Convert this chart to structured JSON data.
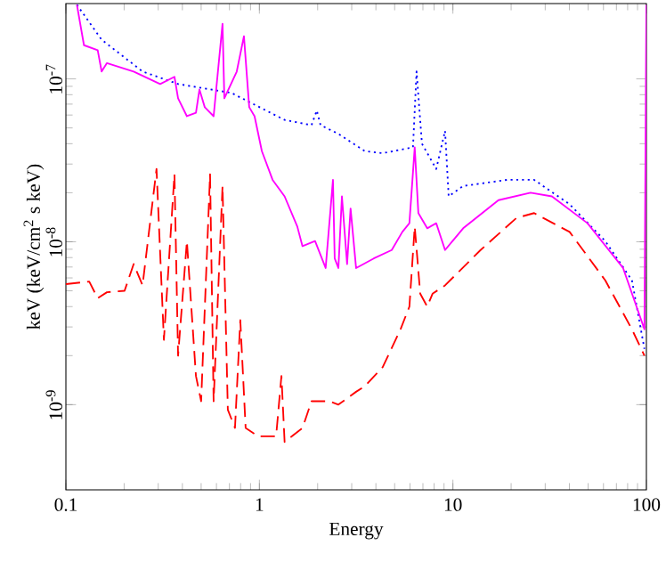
{
  "chart_data": {
    "type": "line",
    "xlabel": "Energy",
    "ylabel": "keV (keV/cm$^{2}$ s keV)",
    "log": "xy",
    "grid": false,
    "marker": "none",
    "xlim": [
      0.1,
      100
    ],
    "ylim": [
      3e-10,
      2.9e-07
    ],
    "xticks": [
      {
        "value": 0.1,
        "label": "0.1"
      },
      {
        "value": 1,
        "label": "1"
      },
      {
        "value": 10,
        "label": "10"
      },
      {
        "value": 100,
        "label": "100"
      }
    ],
    "yticks": [
      {
        "value": 1e-09,
        "label": "10$^{-9}$"
      },
      {
        "value": 1e-08,
        "label": "10$^{-8}$"
      },
      {
        "value": 1e-07,
        "label": "10$^{-7}$"
      }
    ],
    "series": [
      {
        "color": "#0000ff",
        "line_style": "dotted",
        "x": [
          0.114,
          0.153,
          0.249,
          0.38,
          0.717,
          1.35,
          1.86,
          1.98,
          2.07,
          2.56,
          3.51,
          4.34,
          6.22,
          6.49,
          6.92,
          8.2,
          9.11,
          9.51,
          11.3,
          19.1,
          26.3,
          40.1,
          61.3,
          84.2,
          97.7
        ],
        "values": [
          2.85e-07,
          1.74e-07,
          1.11e-07,
          9.3e-08,
          8.2e-08,
          5.6e-08,
          5.2e-08,
          6.4e-08,
          5.2e-08,
          4.6e-08,
          3.6e-08,
          3.5e-08,
          3.8e-08,
          1.11e-07,
          4e-08,
          2.8e-08,
          4.8e-08,
          1.9e-08,
          2.2e-08,
          2.4e-08,
          2.4e-08,
          1.7e-08,
          1.01e-08,
          5.8e-09,
          2.2e-09
        ]
      },
      {
        "color": "#ff00ff",
        "line_style": "solid",
        "x": [
          0.114,
          0.124,
          0.146,
          0.153,
          0.163,
          0.224,
          0.307,
          0.364,
          0.38,
          0.422,
          0.47,
          0.49,
          0.522,
          0.58,
          0.645,
          0.659,
          0.764,
          0.832,
          0.886,
          0.944,
          1.03,
          1.17,
          1.35,
          1.57,
          1.67,
          1.94,
          2.2,
          2.4,
          2.45,
          2.56,
          2.67,
          2.84,
          2.96,
          3.16,
          3.9,
          4.83,
          5.48,
          5.96,
          6.35,
          6.63,
          7.37,
          8.2,
          9.11,
          11.3,
          17.2,
          25.2,
          32.5,
          49.6,
          75.8,
          97.7,
          100
        ],
        "values": [
          2.85e-07,
          1.61e-07,
          1.5e-07,
          1.11e-07,
          1.25e-07,
          1.11e-07,
          9.3e-08,
          1.03e-07,
          7.6e-08,
          5.9e-08,
          6.2e-08,
          8.6e-08,
          6.7e-08,
          5.9e-08,
          2.18e-07,
          7.6e-08,
          1.11e-07,
          1.83e-07,
          6.7e-08,
          5.9e-08,
          3.6e-08,
          2.4e-08,
          1.9e-08,
          1.24e-08,
          9.4e-09,
          1.01e-08,
          6.9e-09,
          2.4e-08,
          7.9e-09,
          6.9e-09,
          1.9e-08,
          7.3e-09,
          1.6e-08,
          6.9e-09,
          7.9e-09,
          8.9e-09,
          1.15e-08,
          1.3e-08,
          3.8e-08,
          1.5e-08,
          1.21e-08,
          1.3e-08,
          8.9e-09,
          1.21e-08,
          1.8e-08,
          2e-08,
          1.9e-08,
          1.3e-08,
          6.9e-09,
          2.9e-09,
          2.85e-07
        ]
      },
      {
        "color": "#ff0000",
        "line_style": "dashed",
        "x": [
          0.1,
          0.132,
          0.146,
          0.163,
          0.201,
          0.224,
          0.249,
          0.294,
          0.321,
          0.364,
          0.38,
          0.422,
          0.47,
          0.5,
          0.556,
          0.58,
          0.645,
          0.687,
          0.748,
          0.797,
          0.849,
          0.985,
          1.22,
          1.3,
          1.35,
          1.67,
          1.86,
          2.3,
          2.56,
          3.16,
          3.51,
          4.34,
          5.36,
          5.96,
          6.35,
          6.78,
          7.37,
          7.85,
          9.11,
          13.9,
          21.3,
          26.3,
          40.1,
          61.3,
          84.2,
          97.7
        ],
        "values": [
          5.5e-09,
          5.7e-09,
          4.5e-09,
          4.9e-09,
          5e-09,
          7.3e-09,
          5.4e-09,
          2.8e-08,
          2.5e-09,
          2.6e-08,
          2e-09,
          1.01e-08,
          1.5e-09,
          1.05e-09,
          2.6e-08,
          1.05e-09,
          2.2e-08,
          9.3e-10,
          7.2e-10,
          3.3e-09,
          7.2e-10,
          6.4e-10,
          6.4e-10,
          1.5e-09,
          5.9e-10,
          7.2e-10,
          1.05e-09,
          1.05e-09,
          1e-09,
          1.2e-09,
          1.3e-09,
          1.7e-09,
          2.9e-09,
          4e-09,
          1.24e-08,
          4.8e-09,
          4e-09,
          4.8e-09,
          5.4e-09,
          8.9e-09,
          1.4e-08,
          1.5e-08,
          1.15e-08,
          5.8e-09,
          2.9e-09,
          2e-09
        ]
      }
    ]
  }
}
